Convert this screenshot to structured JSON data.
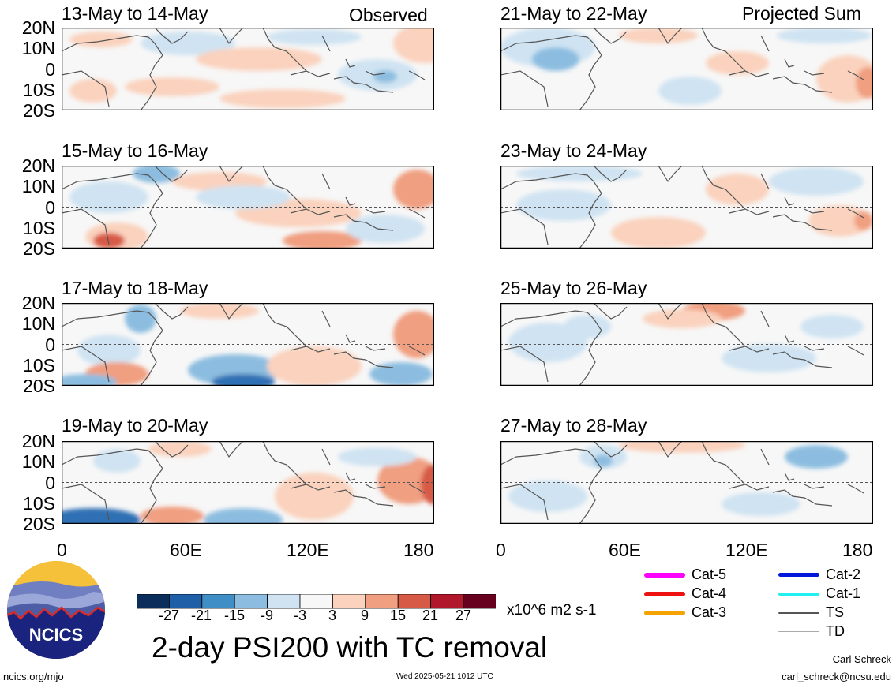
{
  "header": {
    "observed_label": "Observed",
    "projected_label": "Projected Sum"
  },
  "panels": {
    "left": [
      {
        "title": "13-May to 14-May"
      },
      {
        "title": "15-May to 16-May"
      },
      {
        "title": "17-May to 18-May"
      },
      {
        "title": "19-May to 20-May"
      }
    ],
    "right": [
      {
        "title": "21-May to 22-May"
      },
      {
        "title": "23-May to 24-May"
      },
      {
        "title": "25-May to 26-May"
      },
      {
        "title": "27-May to 28-May"
      }
    ]
  },
  "axes": {
    "y_ticks": [
      "20N",
      "10N",
      "0",
      "10S",
      "20S"
    ],
    "x_ticks": [
      "0",
      "60E",
      "120E",
      "180"
    ]
  },
  "colorbar": {
    "ticks": [
      "-27",
      "-21",
      "-15",
      "-9",
      "-3",
      "3",
      "9",
      "15",
      "21",
      "27"
    ],
    "colors": [
      "#0b2d5b",
      "#1f5fa8",
      "#3f8fc6",
      "#8cbde0",
      "#cfe3f2",
      "#f7f7f7",
      "#fad2bd",
      "#f09f80",
      "#d75a47",
      "#b2182b",
      "#67001f"
    ],
    "units": "x10^6 m2 s-1"
  },
  "legend": {
    "items": [
      {
        "label": "Cat-5",
        "color": "#ff00ff",
        "weight": "thick"
      },
      {
        "label": "Cat-4",
        "color": "#ee1111",
        "weight": "thick"
      },
      {
        "label": "Cat-3",
        "color": "#f5a300",
        "weight": "thick"
      },
      {
        "label": "Cat-2",
        "color": "#0018d8",
        "weight": "thick"
      },
      {
        "label": "Cat-1",
        "color": "#22f0f0",
        "weight": "thick"
      },
      {
        "label": "TS",
        "color": "#555555",
        "weight": "medium"
      },
      {
        "label": "TD",
        "color": "#aaaaaa",
        "weight": "thin"
      }
    ]
  },
  "logo": {
    "text": "NCICS"
  },
  "main_title": "2-day PSI200 with TC removal",
  "footer": {
    "url": "ncics.org/mjo",
    "timestamp": "Wed 2025-05-21 1012 UTC",
    "author": "Carl Schreck",
    "email": "carl_schreck@ncsu.edu"
  },
  "fields": {
    "colors": {
      "strong_blue": "#2f6fb3",
      "mid_blue": "#8cbde0",
      "light_blue": "#cfe3f2",
      "light_red": "#fad2bd",
      "mid_red": "#f09f80",
      "strong_red": "#d75a47"
    }
  }
}
